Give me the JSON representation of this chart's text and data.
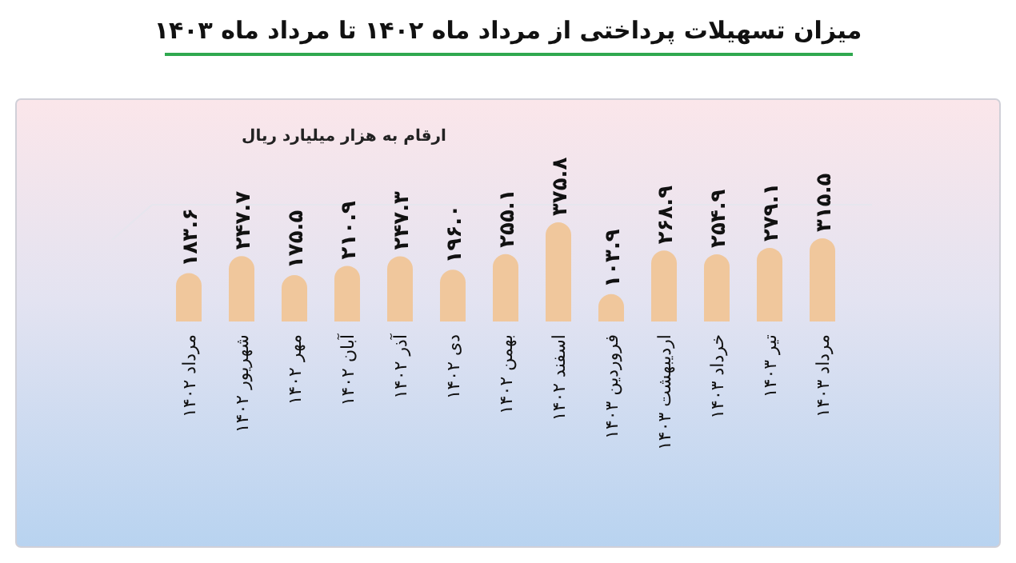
{
  "chart_data": {
    "type": "bar",
    "title": "میزان تسهیلات پرداختی از مرداد ماه ۱۴۰۲ تا مرداد ماه ۱۴۰۳",
    "subtitle": "ارقام به هزار میلیارد ریال",
    "categories": [
      "مرداد ۱۴۰۲",
      "شهریور ۱۴۰۲",
      "مهر ۱۴۰۲",
      "آبان ۱۴۰۲",
      "آذر ۱۴۰۲",
      "دی ۱۴۰۲",
      "بهمن ۱۴۰۲",
      "اسفند ۱۴۰۲",
      "فروردین ۱۴۰۳",
      "اردیبهشت ۱۴۰۳",
      "خرداد ۱۴۰۳",
      "تیر ۱۴۰۳",
      "مرداد ۱۴۰۳"
    ],
    "values": [
      183.6,
      247.7,
      175.5,
      210.9,
      247.3,
      196.0,
      255.1,
      375.8,
      103.9,
      268.9,
      254.9,
      279.1,
      315.5
    ],
    "value_labels": [
      "۱۸۳.۶",
      "۲۴۷.۷",
      "۱۷۵.۵",
      "۲۱۰.۹",
      "۲۴۷.۳",
      "۱۹۶.۰",
      "۲۵۵.۱",
      "۳۷۵.۸",
      "۱۰۳.۹",
      "۲۶۸.۹",
      "۲۵۴.۹",
      "۲۷۹.۱",
      "۳۱۵.۵"
    ],
    "color": "#f0c79c"
  }
}
